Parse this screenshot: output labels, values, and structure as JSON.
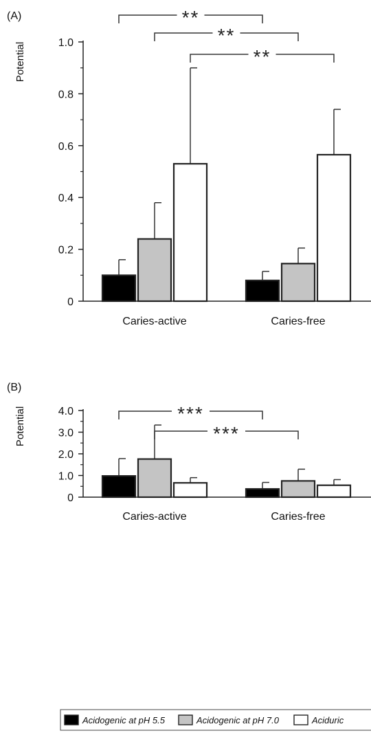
{
  "chart_data": [
    {
      "type": "bar",
      "panel_label": "(A)",
      "ylabel": "Potential",
      "ylim": [
        0,
        1.0
      ],
      "yticks": [
        0,
        0.2,
        0.4,
        0.6,
        0.8,
        1.0
      ],
      "ytick_labels": [
        "0",
        "0.2",
        "0.4",
        "0.6",
        "0.8",
        "1.0"
      ],
      "categories": [
        "Caries-active",
        "Caries-free"
      ],
      "series": [
        {
          "name": "Acidogenic at pH 5.5",
          "color": "#000000",
          "values": [
            0.1,
            0.08
          ],
          "errors": [
            0.06,
            0.035
          ]
        },
        {
          "name": "Acidogenic at pH 7.0",
          "color": "#c4c4c4",
          "values": [
            0.24,
            0.145
          ],
          "errors": [
            0.14,
            0.06
          ]
        },
        {
          "name": "Aciduric",
          "color": "#ffffff",
          "values": [
            0.53,
            0.565
          ],
          "errors": [
            0.37,
            0.175
          ]
        }
      ],
      "significance": [
        {
          "from": [
            0,
            0
          ],
          "to": [
            1,
            0
          ],
          "label": "**"
        },
        {
          "from": [
            0,
            1
          ],
          "to": [
            1,
            1
          ],
          "label": "**"
        },
        {
          "from": [
            0,
            2
          ],
          "to": [
            1,
            2
          ],
          "label": "**"
        }
      ]
    },
    {
      "type": "bar",
      "panel_label": "(B)",
      "ylabel": "Potential",
      "ylim": [
        0,
        4.0
      ],
      "yticks": [
        0,
        1.0,
        2.0,
        3.0,
        4.0
      ],
      "ytick_labels": [
        "0",
        "1.0",
        "2.0",
        "3.0",
        "4.0"
      ],
      "categories": [
        "Caries-active",
        "Caries-free"
      ],
      "series": [
        {
          "name": "Acidogenic at pH 5.5",
          "color": "#000000",
          "values": [
            0.98,
            0.38
          ],
          "errors": [
            0.8,
            0.3
          ]
        },
        {
          "name": "Acidogenic at pH 7.0",
          "color": "#c4c4c4",
          "values": [
            1.76,
            0.75
          ],
          "errors": [
            1.57,
            0.54
          ]
        },
        {
          "name": "Aciduric",
          "color": "#ffffff",
          "values": [
            0.66,
            0.55
          ],
          "errors": [
            0.24,
            0.26
          ]
        }
      ],
      "significance": [
        {
          "from": [
            0,
            0
          ],
          "to": [
            1,
            0
          ],
          "label": "***"
        },
        {
          "from": [
            0,
            1
          ],
          "to": [
            1,
            1
          ],
          "label": "***"
        }
      ]
    }
  ],
  "legend": {
    "placement": "bottom",
    "items": [
      {
        "label": "Acidogenic at pH 5.5",
        "color": "#000000"
      },
      {
        "label": "Acidogenic at pH 7.0",
        "color": "#c4c4c4"
      },
      {
        "label": "Aciduric",
        "color": "#ffffff"
      }
    ]
  }
}
